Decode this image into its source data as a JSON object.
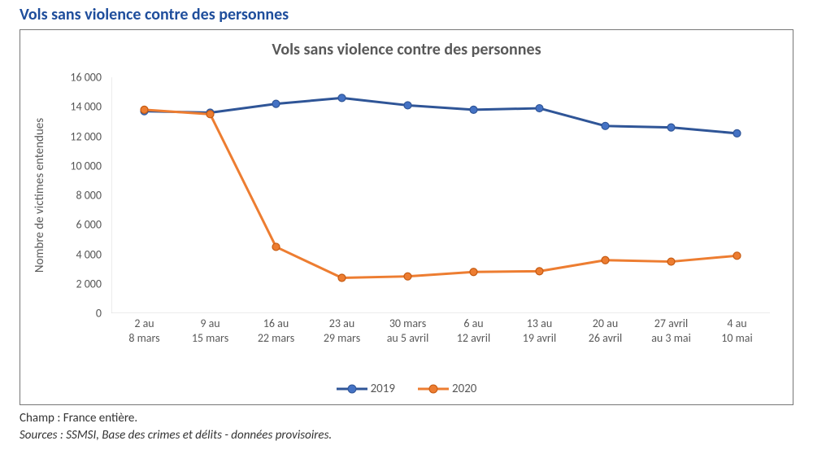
{
  "title": {
    "text": "Vols sans violence contre des personnes",
    "color": "#1f4e9c",
    "fontsize": 20,
    "font_weight": "bold"
  },
  "chart": {
    "type": "line",
    "title": "Vols sans violence contre des personnes",
    "title_color": "#595959",
    "title_fontsize": 20,
    "background_color": "#ffffff",
    "border_color": "#777777",
    "axis_line_color": "#d9d9d9",
    "tick_font_color": "#595959",
    "tick_fontsize": 14,
    "y_axis": {
      "title": "Nombre de victimes entendues",
      "title_fontsize": 15,
      "min": 0,
      "max": 16000,
      "tick_step": 2000,
      "tick_labels": [
        "0",
        "2 000",
        "4 000",
        "6 000",
        "8 000",
        "10 000",
        "12 000",
        "14 000",
        "16 000"
      ],
      "tick_mark_color": "#d9d9d9"
    },
    "x_axis": {
      "labels": [
        [
          "2 au",
          "8 mars"
        ],
        [
          "9 au",
          "15 mars"
        ],
        [
          "16 au",
          "22 mars"
        ],
        [
          "23 au",
          "29 mars"
        ],
        [
          "30 mars",
          "au 5 avril"
        ],
        [
          "6 au",
          "12 avril"
        ],
        [
          "13 au",
          "19 avril"
        ],
        [
          "20 au",
          "26 avril"
        ],
        [
          "27 avril",
          "au 3 mai"
        ],
        [
          "4 au",
          "10 mai"
        ]
      ]
    },
    "series": [
      {
        "name": "2019",
        "color": "#2f5597",
        "marker_fill": "#4472c4",
        "marker_border": "#2f5597",
        "line_width": 3,
        "marker_size": 9,
        "marker_style": "circle",
        "values": [
          13700,
          13600,
          14200,
          14600,
          14100,
          13800,
          13900,
          12700,
          12600,
          12200
        ]
      },
      {
        "name": "2020",
        "color": "#ed7d31",
        "marker_fill": "#ed7d31",
        "marker_border": "#c55a11",
        "line_width": 3,
        "marker_size": 9,
        "marker_style": "circle",
        "values": [
          13800,
          13500,
          4500,
          2400,
          2500,
          2800,
          2850,
          3600,
          3500,
          3900
        ]
      }
    ],
    "legend": {
      "position": "bottom",
      "fontsize": 15,
      "font_color": "#595959"
    }
  },
  "footnotes": {
    "line1": "Champ : France entière.",
    "line2": "Sources : SSMSI, Base des crimes et délits - données provisoires.",
    "color": "#333333",
    "fontsize": 15
  }
}
